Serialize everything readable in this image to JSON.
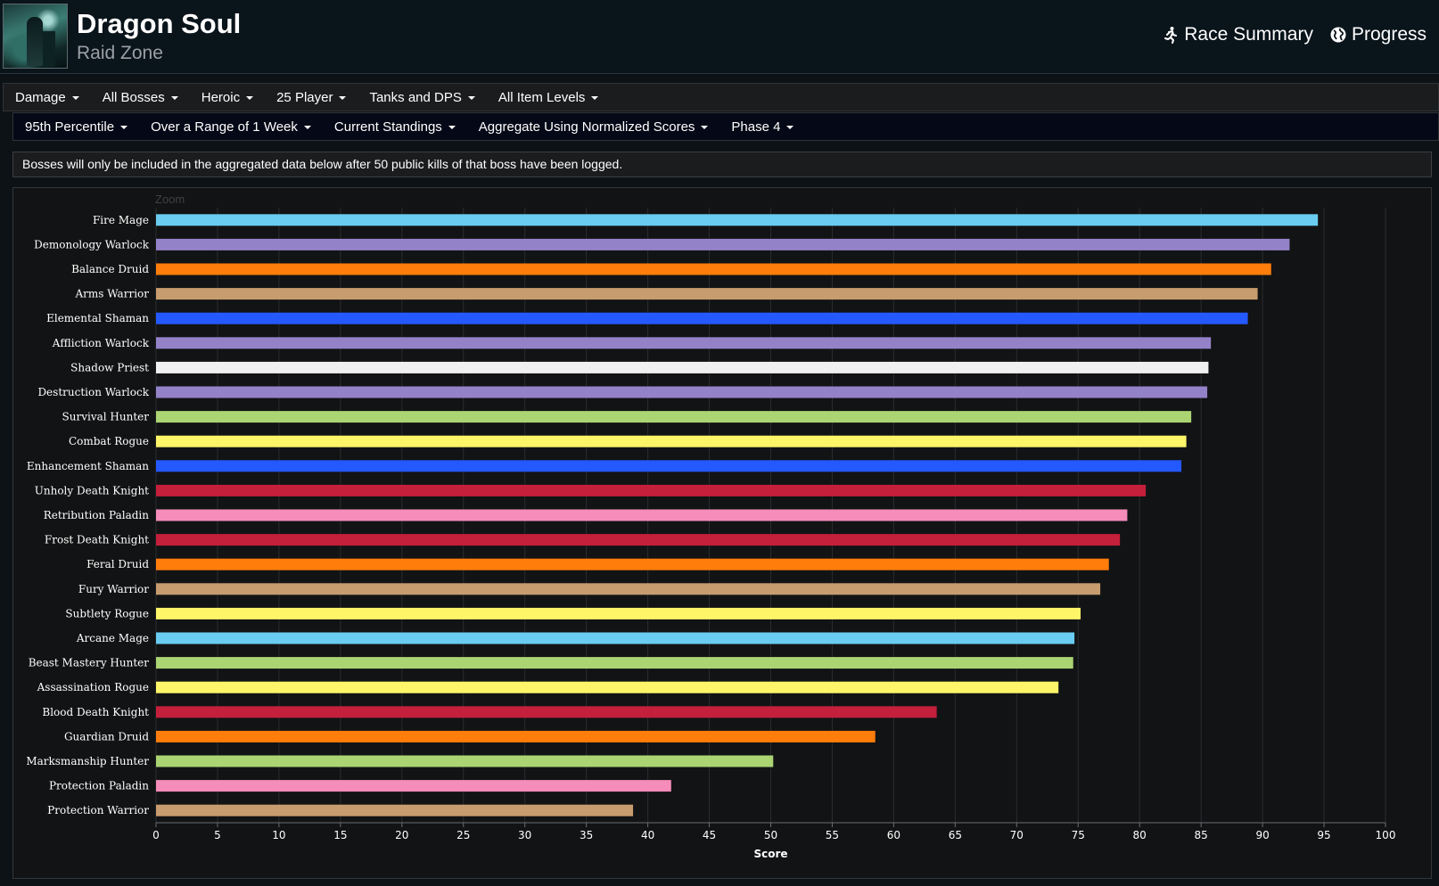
{
  "header": {
    "title": "Dragon Soul",
    "subtitle": "Raid Zone",
    "links": [
      {
        "label": "Race Summary",
        "icon": "running-person-icon"
      },
      {
        "label": "Progress",
        "icon": "globe-icon"
      }
    ]
  },
  "filters_primary": [
    "Damage",
    "All Bosses",
    "Heroic",
    "25 Player",
    "Tanks and DPS",
    "All Item Levels"
  ],
  "filters_secondary": [
    "95th Percentile",
    "Over a Range of 1 Week",
    "Current Standings",
    "Aggregate Using Normalized Scores",
    "Phase 4"
  ],
  "notice": "Bosses will only be included in the aggregated data below after 50 public kills of that boss have been logged.",
  "chart_ui": {
    "zoom_label": "Zoom"
  },
  "chart_data": {
    "type": "bar",
    "orientation": "horizontal",
    "xlabel": "Score",
    "xlim": [
      0,
      100
    ],
    "xticks": [
      0,
      5,
      10,
      15,
      20,
      25,
      30,
      35,
      40,
      45,
      50,
      55,
      60,
      65,
      70,
      75,
      80,
      85,
      90,
      95,
      100
    ],
    "grid": true,
    "categories": [
      "Fire Mage",
      "Demonology Warlock",
      "Balance Druid",
      "Arms Warrior",
      "Elemental Shaman",
      "Affliction Warlock",
      "Shadow Priest",
      "Destruction Warlock",
      "Survival Hunter",
      "Combat Rogue",
      "Enhancement Shaman",
      "Unholy Death Knight",
      "Retribution Paladin",
      "Frost Death Knight",
      "Feral Druid",
      "Fury Warrior",
      "Subtlety Rogue",
      "Arcane Mage",
      "Beast Mastery Hunter",
      "Assassination Rogue",
      "Blood Death Knight",
      "Guardian Druid",
      "Marksmanship Hunter",
      "Protection Paladin",
      "Protection Warrior"
    ],
    "values": [
      94.5,
      92.2,
      90.7,
      89.6,
      88.8,
      85.8,
      85.6,
      85.5,
      84.2,
      83.8,
      83.4,
      80.5,
      79.0,
      78.4,
      77.5,
      76.8,
      75.2,
      74.7,
      74.6,
      73.4,
      63.5,
      58.5,
      50.2,
      41.9,
      38.8
    ],
    "colors": [
      "#69ccf0",
      "#9482c9",
      "#ff7d0a",
      "#c79c6e",
      "#2459ff",
      "#9482c9",
      "#f0f0f0",
      "#9482c9",
      "#abd473",
      "#fff569",
      "#2459ff",
      "#c41f3b",
      "#f58cba",
      "#c41f3b",
      "#ff7d0a",
      "#c79c6e",
      "#fff569",
      "#69ccf0",
      "#abd473",
      "#fff569",
      "#c41f3b",
      "#ff7d0a",
      "#abd473",
      "#f58cba",
      "#c79c6e"
    ]
  }
}
